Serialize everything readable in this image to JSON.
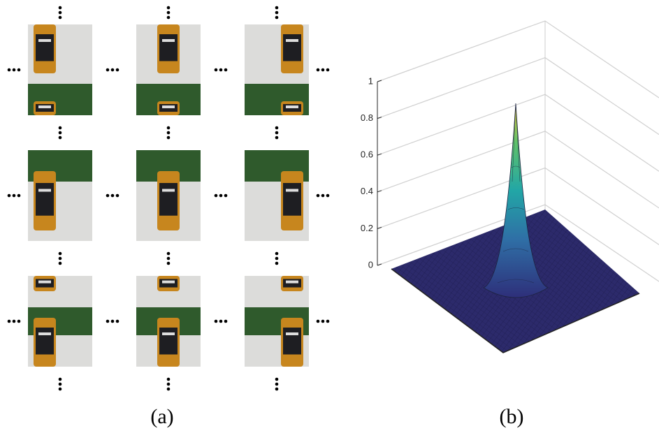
{
  "panels": [
    {
      "caption": "(a)"
    },
    {
      "caption": "(b)",
      "zlim": [
        0,
        1
      ],
      "zticks": [
        0,
        0.2,
        0.4,
        0.6,
        0.8,
        1
      ]
    }
  ]
}
